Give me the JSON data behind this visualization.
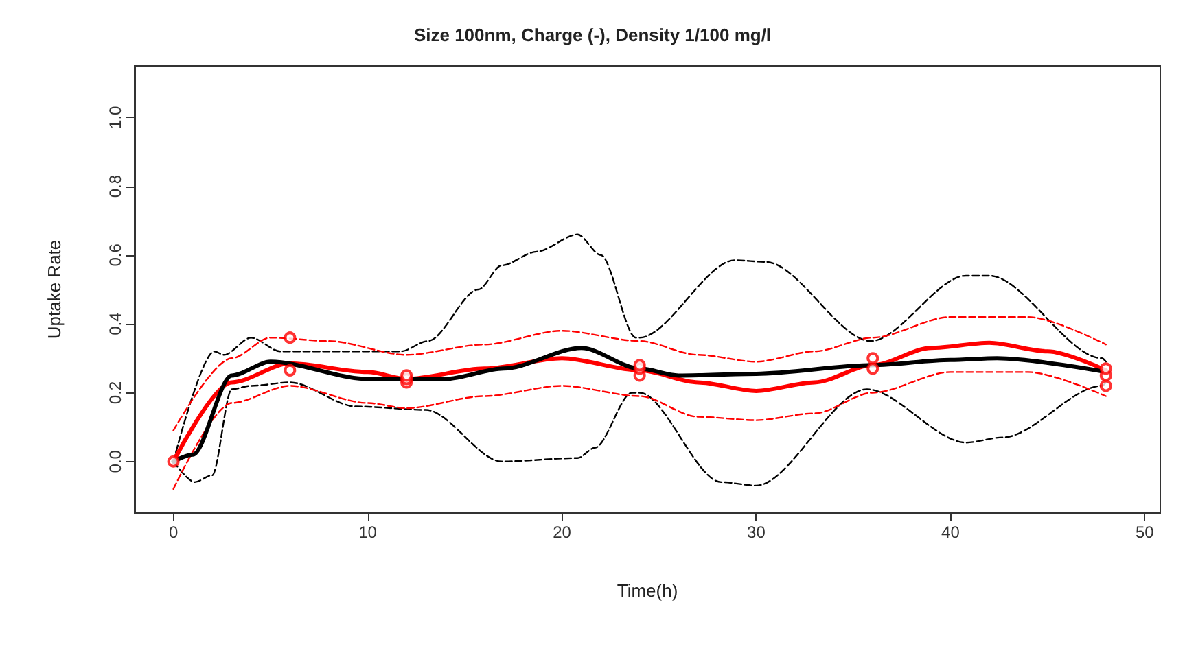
{
  "chart_data": {
    "type": "line",
    "title": "Size 100nm, Charge (-), Density 1/100 mg/l",
    "xlabel": "Time(h)",
    "ylabel": "Uptake Rate",
    "xlim": [
      -2,
      50.8
    ],
    "ylim": [
      -0.15,
      1.15
    ],
    "xticks": [
      0,
      10,
      20,
      30,
      40,
      50
    ],
    "yticks": [
      {
        "value": 0,
        "label": "0.0"
      },
      {
        "value": 0.2,
        "label": "0.2"
      },
      {
        "value": 0.4,
        "label": "0.4"
      },
      {
        "value": 0.6,
        "label": "0.6"
      },
      {
        "value": 0.8,
        "label": "0.8"
      },
      {
        "value": 1,
        "label": "1.0"
      }
    ],
    "grid": false,
    "marker": "none",
    "series": [
      {
        "color": "#000000",
        "line_style": "dashed",
        "x": [
          0,
          1.1,
          2,
          3,
          4,
          6,
          9.4,
          13,
          16.9,
          20.8,
          21.7,
          23.6,
          24,
          28.2,
          30,
          35.7,
          40.8,
          42.7,
          47.8,
          48
        ],
        "values": [
          0,
          -0.06,
          -0.04,
          0.21,
          0.22,
          0.23,
          0.16,
          0.15,
          0,
          0.01,
          0.04,
          0.2,
          0.2,
          -0.06,
          -0.07,
          0.21,
          0.055,
          0.07,
          0.22,
          0.23
        ]
      },
      {
        "color": "#000000",
        "line_style": "dashed",
        "x": [
          0,
          2.1,
          2.6,
          4,
          5.5,
          7,
          11.7,
          13.1,
          15.7,
          16.9,
          18.7,
          20.8,
          22,
          23.8,
          24,
          28.9,
          30.5,
          35.9,
          40.8,
          42,
          47.8,
          48
        ],
        "values": [
          0,
          0.32,
          0.31,
          0.36,
          0.32,
          0.32,
          0.32,
          0.35,
          0.5,
          0.57,
          0.61,
          0.66,
          0.6,
          0.36,
          0.36,
          0.585,
          0.58,
          0.35,
          0.54,
          0.54,
          0.3,
          0.29
        ]
      },
      {
        "color": "#ff0000",
        "line_style": "dashed",
        "x": [
          0,
          3,
          5,
          8,
          12,
          16,
          20,
          24,
          27,
          30,
          33,
          36,
          40,
          44,
          48
        ],
        "values": [
          0.09,
          0.3,
          0.36,
          0.35,
          0.31,
          0.34,
          0.38,
          0.35,
          0.31,
          0.29,
          0.32,
          0.36,
          0.42,
          0.42,
          0.34
        ]
      },
      {
        "color": "#ff0000",
        "line_style": "dashed",
        "x": [
          0,
          3,
          6,
          10,
          12,
          16,
          20,
          24,
          27,
          30,
          33,
          36,
          40,
          44,
          48
        ],
        "values": [
          -0.08,
          0.17,
          0.22,
          0.17,
          0.155,
          0.19,
          0.22,
          0.19,
          0.13,
          0.12,
          0.14,
          0.2,
          0.26,
          0.26,
          0.19
        ]
      },
      {
        "color": "#ff0000",
        "line_style": "solid",
        "x": [
          0,
          3,
          6,
          10,
          12,
          16,
          20,
          24,
          27,
          30,
          33,
          36,
          39,
          42,
          45,
          48
        ],
        "values": [
          0,
          0.23,
          0.285,
          0.26,
          0.24,
          0.27,
          0.3,
          0.265,
          0.23,
          0.205,
          0.23,
          0.28,
          0.33,
          0.345,
          0.32,
          0.265
        ]
      },
      {
        "color": "#000000",
        "line_style": "solid",
        "x": [
          0,
          1,
          3,
          5,
          10,
          14,
          17,
          21,
          24,
          26,
          30,
          36,
          40,
          42.4,
          48
        ],
        "values": [
          0,
          0.02,
          0.25,
          0.29,
          0.24,
          0.24,
          0.27,
          0.33,
          0.27,
          0.25,
          0.255,
          0.28,
          0.295,
          0.3,
          0.26
        ]
      },
      {
        "type": "scatter",
        "marker": "circle",
        "color": "#ff0000",
        "x": [
          0,
          6,
          6,
          12,
          12,
          12,
          24,
          24,
          24,
          36,
          36,
          48,
          48,
          48
        ],
        "values": [
          0,
          0.36,
          0.265,
          0.23,
          0.24,
          0.25,
          0.25,
          0.27,
          0.28,
          0.27,
          0.3,
          0.22,
          0.25,
          0.27
        ]
      }
    ]
  }
}
